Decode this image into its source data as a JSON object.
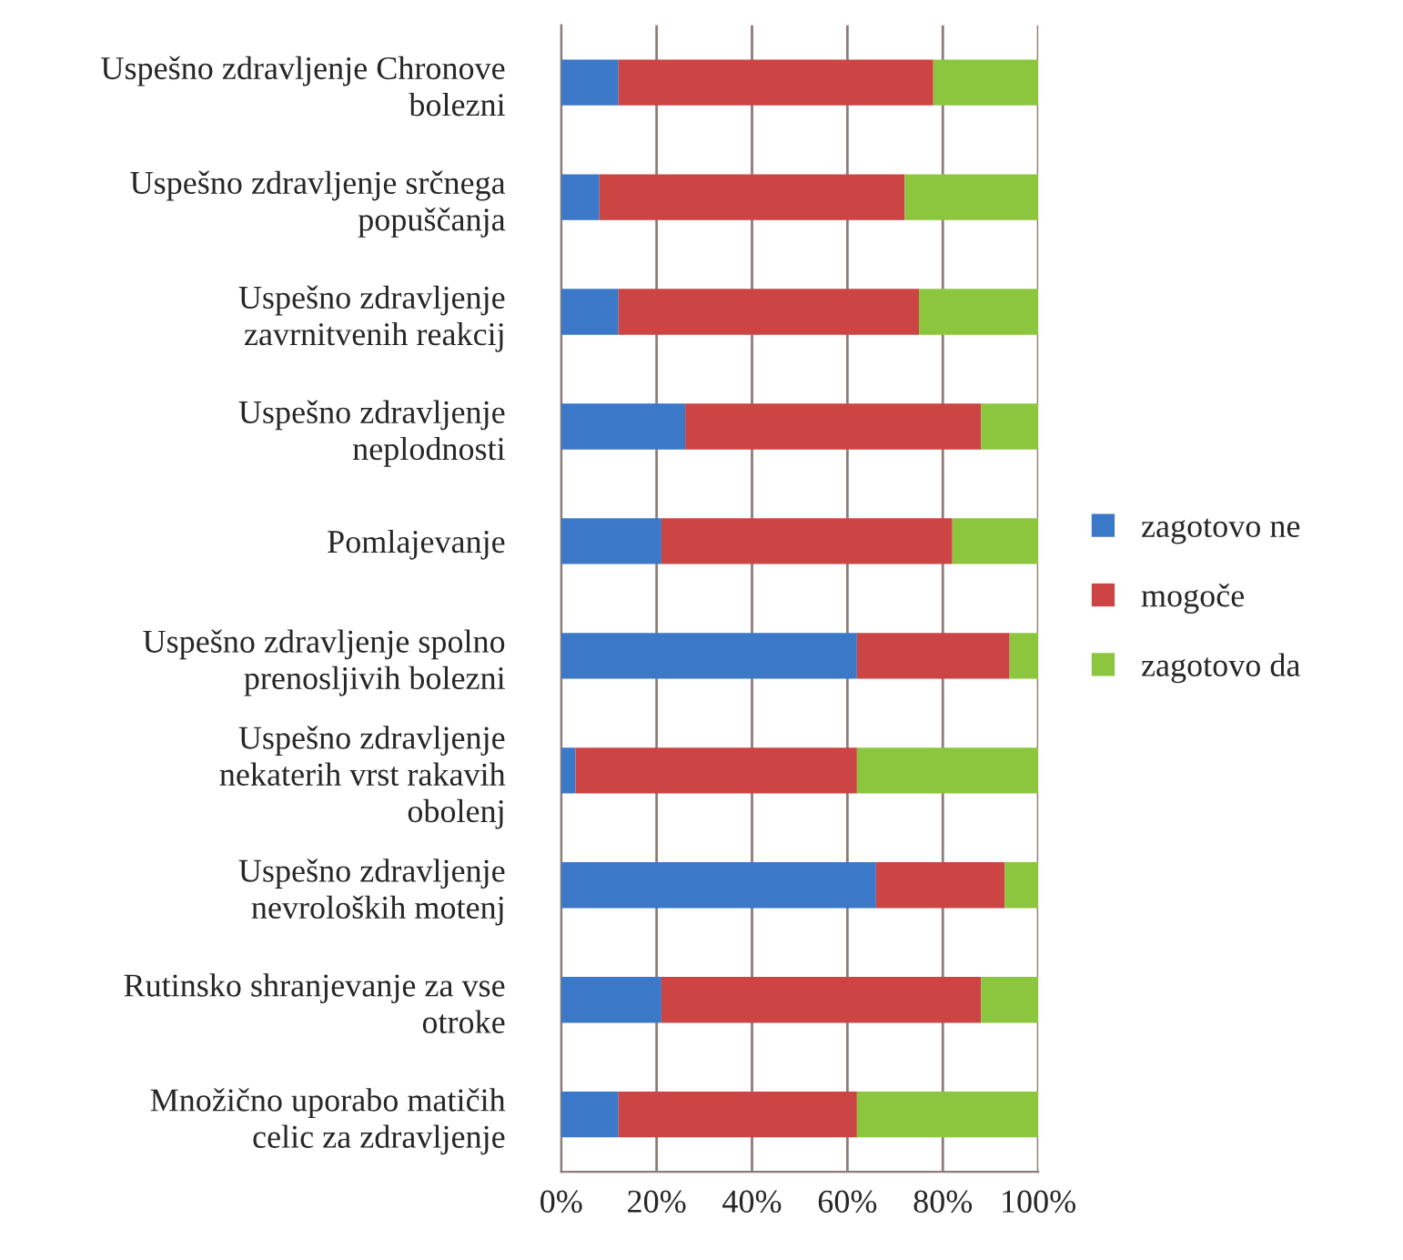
{
  "chart_data": {
    "type": "bar",
    "orientation": "horizontal",
    "stacked": true,
    "categories": [
      "Uspešno zdravljenje Chronove bolezni",
      "Uspešno zdravljenje srčnega popuščanja",
      "Uspešno zdravljenje zavrnitvenih reakcij",
      "Uspešno zdravljenje neplodnosti",
      "Pomlajevanje",
      "Uspešno zdravljenje spolno prenosljivih bolezni",
      "Uspešno zdravljenje nekaterih vrst rakavih obolenj",
      "Uspešno zdravljenje nevroloških motenj",
      "Rutinsko shranjevanje za vse otroke",
      "Množično uporabo matičih celic za zdravljenje"
    ],
    "series": [
      {
        "name": "zagotovo ne",
        "color": "#3b78c8",
        "values": [
          12,
          8,
          12,
          26,
          21,
          62,
          3,
          66,
          21,
          12
        ]
      },
      {
        "name": "mogoče",
        "color": "#cc4444",
        "values": [
          66,
          64,
          63,
          62,
          61,
          32,
          59,
          27,
          67,
          50
        ]
      },
      {
        "name": "zagotovo da",
        "color": "#8cc63f",
        "values": [
          22,
          28,
          25,
          12,
          18,
          6,
          38,
          7,
          12,
          38
        ]
      }
    ],
    "xlim": [
      0,
      100
    ],
    "xticks": [
      {
        "value": 0,
        "label": "0%"
      },
      {
        "value": 20,
        "label": "20%"
      },
      {
        "value": 40,
        "label": "40%"
      },
      {
        "value": 60,
        "label": "60%"
      },
      {
        "value": 80,
        "label": "80%"
      },
      {
        "value": 100,
        "label": "100%"
      }
    ],
    "grid": "x",
    "legend": "right"
  }
}
